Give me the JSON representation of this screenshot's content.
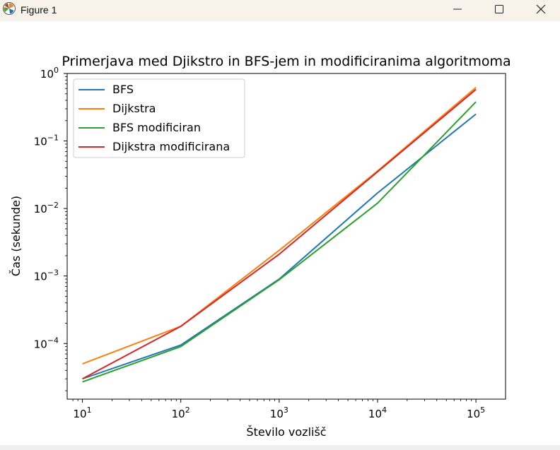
{
  "window": {
    "title": "Figure 1",
    "app_icon": "matplotlib-icon",
    "controls": [
      "minimize-icon",
      "maximize-icon",
      "close-icon"
    ]
  },
  "chart_data": {
    "type": "line",
    "title": "Primerjava med Djikstro in BFS-jem in modificiranima algoritmoma",
    "xlabel": "Število vozlišč",
    "ylabel": "Čas (sekunde)",
    "xscale": "log",
    "yscale": "log",
    "xlim": [
      7,
      200000
    ],
    "ylim": [
      1.5e-05,
      1
    ],
    "x": [
      10,
      100,
      1000,
      10000,
      100000
    ],
    "xticks": [
      {
        "base": "10",
        "exp": "1"
      },
      {
        "base": "10",
        "exp": "2"
      },
      {
        "base": "10",
        "exp": "3"
      },
      {
        "base": "10",
        "exp": "4"
      },
      {
        "base": "10",
        "exp": "5"
      }
    ],
    "yticks": [
      {
        "base": "10",
        "exp": "−4"
      },
      {
        "base": "10",
        "exp": "−3"
      },
      {
        "base": "10",
        "exp": "−2"
      },
      {
        "base": "10",
        "exp": "−1"
      },
      {
        "base": "10",
        "exp": "0"
      }
    ],
    "grid": false,
    "legend_position": "upper-left",
    "series": [
      {
        "name": "BFS",
        "color": "#1f77b4",
        "values": [
          3e-05,
          9.5e-05,
          0.0009,
          0.017,
          0.25
        ]
      },
      {
        "name": "Dijkstra",
        "color": "#ff7f0e",
        "values": [
          5e-05,
          0.00018,
          0.0024,
          0.036,
          0.62
        ]
      },
      {
        "name": "BFS modificiran",
        "color": "#2ca02c",
        "values": [
          2.7e-05,
          9e-05,
          0.00088,
          0.012,
          0.38
        ]
      },
      {
        "name": "Dijkstra modificirana",
        "color": "#d62728",
        "values": [
          3e-05,
          0.00018,
          0.0021,
          0.035,
          0.58
        ]
      }
    ]
  }
}
